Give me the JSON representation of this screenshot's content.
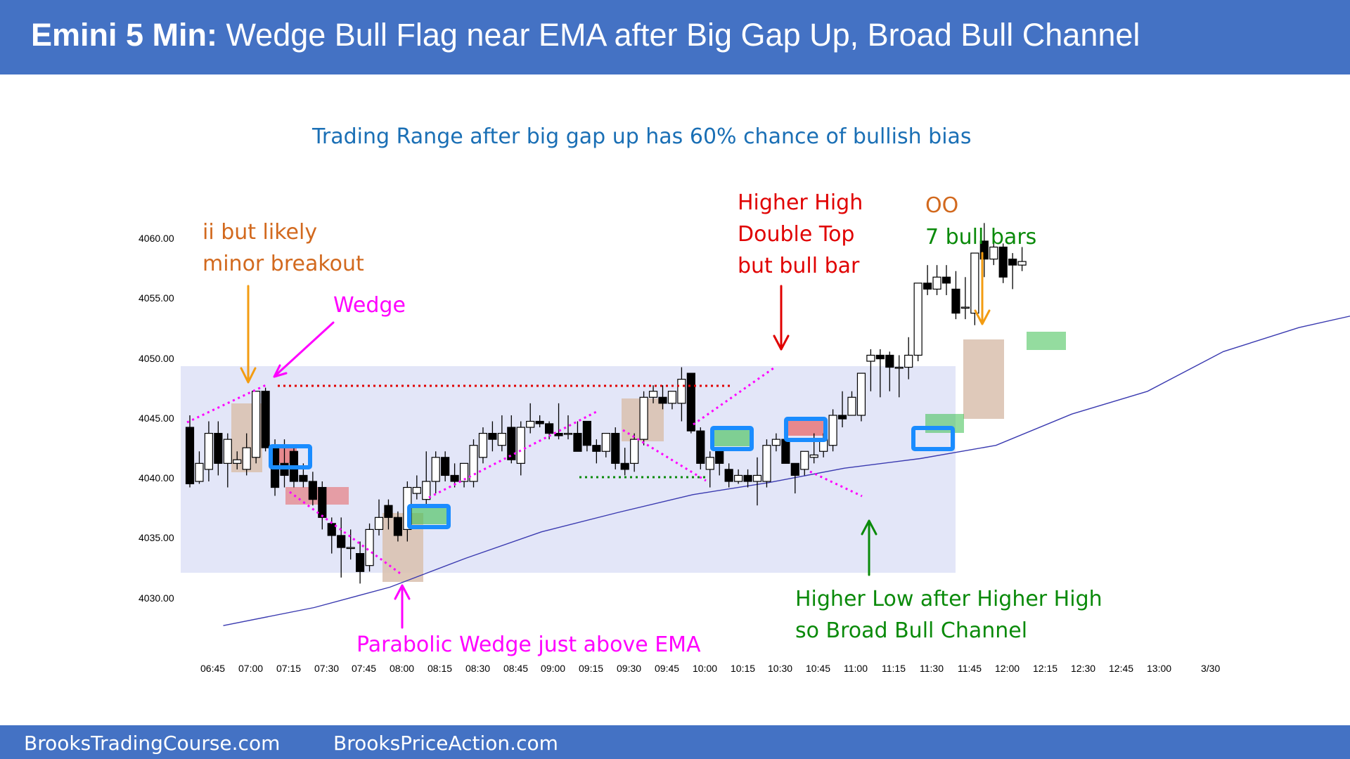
{
  "header": {
    "title_bold": "Emini 5 Min:",
    "title_rest": " Wedge Bull Flag near EMA after Big Gap Up, Broad Bull Channel"
  },
  "footer": {
    "left": "BrooksTradingCourse.com",
    "right": "BrooksPriceAction.com"
  },
  "colors": {
    "header_bg": "#4472c4",
    "bull_fill": "#ffffff",
    "bear_fill": "#000000",
    "range_box": "#e3e6f8",
    "ema": "#3a3ab0",
    "magenta": "#ff00ff",
    "orange": "#f39c12",
    "red": "#e00000",
    "green": "#0a8a0a",
    "blue_box": "#1a8cff",
    "tan": "#d9bfae"
  },
  "annotations": {
    "top": "Trading Range after big gap up has 60% chance of bullish bias",
    "ii_1": "ii but likely",
    "ii_2": "minor breakout",
    "wedge": "Wedge",
    "hh_1": "Higher High",
    "hh_2": "Double Top",
    "hh_3": "but bull bar",
    "oo": "OO",
    "seven": "7 bull bars",
    "pw": "Parabolic Wedge just above EMA",
    "hl_1": "Higher Low after Higher High",
    "hl_2": "so Broad Bull Channel"
  },
  "chart_data": {
    "type": "candlestick",
    "title": "Emini 5 Min",
    "ylim": [
      4028,
      4064
    ],
    "yticks": [
      "4030.00",
      "4035.00",
      "4040.00",
      "4045.00",
      "4050.00",
      "4055.00",
      "4060.00"
    ],
    "xticks": [
      "06:45",
      "07:00",
      "07:15",
      "07:30",
      "07:45",
      "08:00",
      "08:15",
      "08:30",
      "08:45",
      "09:00",
      "09:15",
      "09:30",
      "09:45",
      "10:00",
      "10:15",
      "10:30",
      "10:45",
      "11:00",
      "11:15",
      "11:30",
      "11:45",
      "12:00",
      "12:15",
      "12:30",
      "12:45",
      "13:00",
      "3/30"
    ],
    "first_bar_time": "06:35",
    "bar_minutes": 5,
    "bars": [
      [
        4044.5,
        4045.5,
        4039.5,
        4039.8
      ],
      [
        4040,
        4042.5,
        4039.8,
        4041.5
      ],
      [
        4041,
        4045,
        4040,
        4044
      ],
      [
        4044,
        4045,
        4040.5,
        4041.5
      ],
      [
        4041.5,
        4044,
        4039.5,
        4043.5
      ],
      [
        4041.5,
        4042.5,
        4041,
        4041.8
      ],
      [
        4041,
        4044,
        4040.5,
        4042.8
      ],
      [
        4042,
        4047.5,
        4041.5,
        4047.5
      ],
      [
        4047.5,
        4047.8,
        4042.5,
        4042.8
      ],
      [
        4042.8,
        4043.5,
        4038.8,
        4039.5
      ],
      [
        4041.5,
        4043.5,
        4039.5,
        4040.5
      ],
      [
        4042.5,
        4042.8,
        4039.5,
        4040
      ],
      [
        4040.5,
        4041.5,
        4039.5,
        4040
      ],
      [
        4040,
        4040.8,
        4038,
        4038.5
      ],
      [
        4039.5,
        4040,
        4036,
        4037
      ],
      [
        4036.5,
        4037,
        4034,
        4035.5
      ],
      [
        4035.5,
        4037,
        4032,
        4034.5
      ],
      [
        4034.5,
        4036,
        4033.5,
        4034.5
      ],
      [
        4034,
        4035,
        4031.5,
        4032.5
      ],
      [
        4033,
        4036.5,
        4032.5,
        4036
      ],
      [
        4036,
        4038.5,
        4035.5,
        4037
      ],
      [
        4038,
        4038.5,
        4036,
        4037
      ],
      [
        4037,
        4037.5,
        4035,
        4035.5
      ],
      [
        4036,
        4040,
        4035,
        4039.5
      ],
      [
        4039,
        4040.5,
        4038.5,
        4039.5
      ],
      [
        4038.5,
        4042.5,
        4038,
        4040
      ],
      [
        4040,
        4042.5,
        4039,
        4042
      ],
      [
        4042,
        4042.5,
        4040,
        4040.5
      ],
      [
        4040.5,
        4041.5,
        4039.5,
        4040
      ],
      [
        4040,
        4041.5,
        4039.5,
        4041.5
      ],
      [
        4040,
        4043.5,
        4039.5,
        4043
      ],
      [
        4042,
        4044.5,
        4041.5,
        4044
      ],
      [
        4044,
        4045,
        4042.5,
        4043.5
      ],
      [
        4043,
        4045.5,
        4042.5,
        4044
      ],
      [
        4044.5,
        4045.5,
        4041.5,
        4041.8
      ],
      [
        4041.5,
        4045,
        4040.5,
        4044.5
      ],
      [
        4044.5,
        4046.5,
        4044,
        4045
      ],
      [
        4045,
        4045.5,
        4044.5,
        4044.8
      ],
      [
        4044.8,
        4045,
        4043.5,
        4044
      ],
      [
        4044,
        4046.5,
        4043.5,
        4043.8
      ],
      [
        4044,
        4045.5,
        4043.5,
        4044
      ],
      [
        4044,
        4045,
        4042.5,
        4042.5
      ],
      [
        4045,
        4045,
        4042.5,
        4043
      ],
      [
        4043,
        4043.5,
        4041.5,
        4042.5
      ],
      [
        4042.5,
        4044,
        4042,
        4044
      ],
      [
        4044,
        4044.5,
        4041,
        4041.5
      ],
      [
        4041.5,
        4042.8,
        4040.5,
        4041
      ],
      [
        4041.5,
        4044,
        4040.8,
        4043.5
      ],
      [
        4043.5,
        4047.5,
        4043,
        4047
      ],
      [
        4047,
        4048,
        4046.5,
        4047.5
      ],
      [
        4047,
        4048,
        4046,
        4046.5
      ],
      [
        4046.5,
        4047.5,
        4046,
        4047.5
      ],
      [
        4046.5,
        4049.5,
        4045,
        4048.5
      ],
      [
        4049,
        4049,
        4044,
        4044.2
      ],
      [
        4044.2,
        4044.5,
        4041,
        4041.5
      ],
      [
        4041,
        4042.5,
        4039.5,
        4042
      ],
      [
        4042.5,
        4042.8,
        4040.5,
        4041.5
      ],
      [
        4041,
        4041.5,
        4039.5,
        4040
      ],
      [
        4040,
        4041,
        4039.8,
        4040.5
      ],
      [
        4040.5,
        4041,
        4039.5,
        4040
      ],
      [
        4040,
        4042,
        4038,
        4040.5
      ],
      [
        4040,
        4043.5,
        4039.5,
        4043
      ],
      [
        4043,
        4044,
        4042.5,
        4043.5
      ],
      [
        4043.5,
        4043.8,
        4041.5,
        4041.5
      ],
      [
        4041.5,
        4041.5,
        4039,
        4040.5
      ],
      [
        4041,
        4042.5,
        4040.5,
        4042.5
      ],
      [
        4042,
        4044,
        4041.5,
        4042.2
      ],
      [
        4042.5,
        4044,
        4042,
        4043.5
      ],
      [
        4043,
        4046,
        4042.5,
        4045.5
      ],
      [
        4045.5,
        4047.5,
        4044.5,
        4045.2
      ],
      [
        4045.5,
        4047.5,
        4045.5,
        4047
      ],
      [
        4045.5,
        4049,
        4045,
        4049
      ],
      [
        4050,
        4051,
        4047.5,
        4050.5
      ],
      [
        4050.5,
        4051,
        4047,
        4050.2
      ],
      [
        4050.5,
        4050.8,
        4047.5,
        4049.5
      ],
      [
        4049.5,
        4050.5,
        4047,
        4049.5
      ],
      [
        4049.5,
        4052,
        4048.5,
        4050.5
      ],
      [
        4050.5,
        4056.5,
        4050,
        4056.5
      ],
      [
        4056.5,
        4058,
        4055.5,
        4056
      ],
      [
        4056,
        4058,
        4055.5,
        4057
      ],
      [
        4057,
        4058,
        4055.5,
        4056.5
      ],
      [
        4056,
        4057.5,
        4053.5,
        4054
      ],
      [
        4054.5,
        4057,
        4053.5,
        4054.5
      ],
      [
        4054,
        4059,
        4053,
        4059
      ],
      [
        4060,
        4061.5,
        4057,
        4058.5
      ],
      [
        4058.5,
        4060,
        4058,
        4059.5
      ],
      [
        4059.5,
        4059.8,
        4056.5,
        4057
      ],
      [
        4058.5,
        4059,
        4056,
        4058
      ],
      [
        4058,
        4059.5,
        4057.5,
        4058.3
      ]
    ],
    "ema": [
      [
        6.9,
        4028
      ],
      [
        7.5,
        4029.5
      ],
      [
        8.0,
        4031.2
      ],
      [
        8.5,
        4033.6
      ],
      [
        9.0,
        4035.8
      ],
      [
        9.5,
        4037.4
      ],
      [
        10.0,
        4038.9
      ],
      [
        10.5,
        4039.9
      ],
      [
        11.0,
        4041.1
      ],
      [
        11.5,
        4041.9
      ],
      [
        12.0,
        4043.0
      ],
      [
        12.5,
        4045.6
      ],
      [
        13.0,
        4047.5
      ],
      [
        13.5,
        4050.8
      ],
      [
        14.0,
        4052.8
      ],
      [
        14.6,
        4054.5
      ]
    ]
  }
}
